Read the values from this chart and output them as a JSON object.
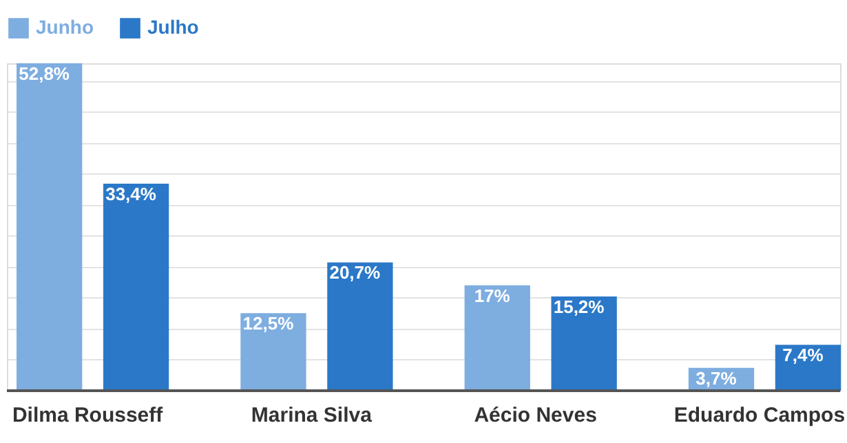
{
  "chart_data": {
    "type": "bar",
    "categories": [
      "Dilma Rousseff",
      "Marina Silva",
      "Aécio Neves",
      "Eduardo Campos"
    ],
    "series": [
      {
        "name": "Junho",
        "color": "#7eade0",
        "values": [
          52.8,
          12.5,
          17,
          3.7
        ],
        "value_labels": [
          "52,8%",
          "12,5%",
          "17%",
          "3,7%"
        ]
      },
      {
        "name": "Julho",
        "color": "#2b78c8",
        "values": [
          33.4,
          20.7,
          15.2,
          7.4
        ],
        "value_labels": [
          "33,4%",
          "20,7%",
          "15,2%",
          "7,4%"
        ]
      }
    ],
    "ylim": [
      0,
      52.8
    ],
    "grid": "y",
    "legend": "top left",
    "tick_labels": "x"
  }
}
